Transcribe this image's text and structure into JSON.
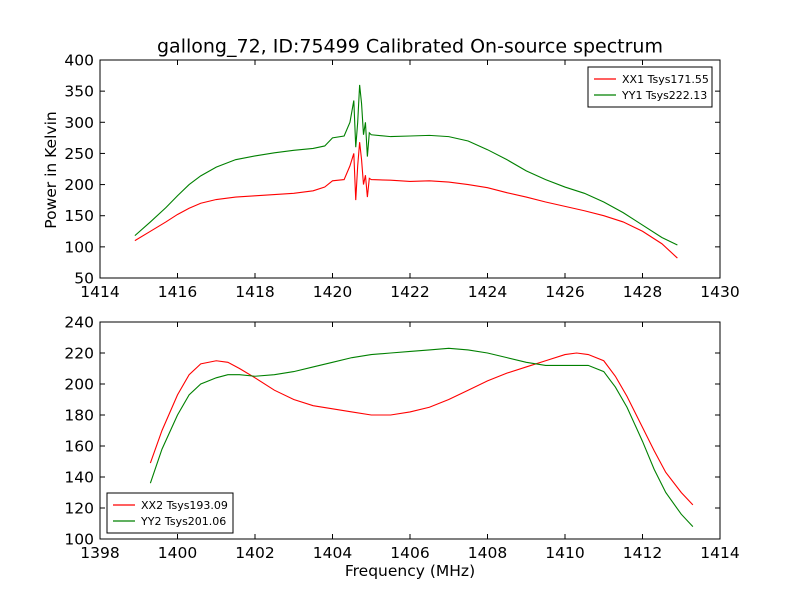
{
  "chart_data": [
    {
      "type": "line",
      "title": "gallong_72, ID:75499 Calibrated On-source spectrum",
      "xlabel": "",
      "ylabel": "Power in Kelvin",
      "xlim": [
        1414,
        1430
      ],
      "ylim": [
        50,
        400
      ],
      "x_ticks": [
        1414,
        1416,
        1418,
        1420,
        1422,
        1424,
        1426,
        1428,
        1430
      ],
      "y_ticks": [
        50,
        100,
        150,
        200,
        250,
        300,
        350,
        400
      ],
      "grid": false,
      "legend_position": "top-right",
      "series": [
        {
          "name": "XX1 Tsys171.55",
          "color": "#ff0000",
          "x": [
            1414.9,
            1415.3,
            1415.7,
            1416.0,
            1416.3,
            1416.6,
            1417.0,
            1417.5,
            1418.0,
            1418.5,
            1419.0,
            1419.5,
            1419.8,
            1420.0,
            1420.3,
            1420.45,
            1420.55,
            1420.6,
            1420.65,
            1420.7,
            1420.75,
            1420.8,
            1420.85,
            1420.9,
            1420.95,
            1421.0,
            1421.5,
            1422.0,
            1422.5,
            1423.0,
            1423.5,
            1424.0,
            1424.5,
            1425.0,
            1425.5,
            1426.0,
            1426.5,
            1427.0,
            1427.5,
            1428.0,
            1428.5,
            1428.9
          ],
          "y": [
            110,
            125,
            140,
            152,
            162,
            170,
            176,
            180,
            182,
            184,
            186,
            190,
            196,
            206,
            208,
            230,
            250,
            175,
            230,
            268,
            240,
            200,
            215,
            180,
            210,
            208,
            207,
            205,
            206,
            204,
            200,
            195,
            187,
            180,
            172,
            165,
            158,
            150,
            140,
            125,
            105,
            82
          ]
        },
        {
          "name": "YY1 Tsys222.13",
          "color": "#008000",
          "x": [
            1414.9,
            1415.3,
            1415.7,
            1416.0,
            1416.3,
            1416.6,
            1417.0,
            1417.5,
            1418.0,
            1418.5,
            1419.0,
            1419.5,
            1419.8,
            1420.0,
            1420.3,
            1420.45,
            1420.55,
            1420.6,
            1420.65,
            1420.7,
            1420.75,
            1420.8,
            1420.85,
            1420.9,
            1420.95,
            1421.0,
            1421.5,
            1422.0,
            1422.5,
            1423.0,
            1423.5,
            1424.0,
            1424.5,
            1425.0,
            1425.5,
            1426.0,
            1426.5,
            1427.0,
            1427.5,
            1428.0,
            1428.5,
            1428.9
          ],
          "y": [
            118,
            140,
            163,
            182,
            200,
            214,
            228,
            240,
            246,
            251,
            255,
            258,
            262,
            275,
            278,
            300,
            335,
            260,
            300,
            360,
            330,
            280,
            300,
            245,
            283,
            280,
            277,
            278,
            279,
            277,
            270,
            256,
            240,
            222,
            208,
            196,
            186,
            172,
            155,
            135,
            115,
            103
          ]
        }
      ]
    },
    {
      "type": "line",
      "title": "",
      "xlabel": "Frequency (MHz)",
      "ylabel": "",
      "xlim": [
        1398,
        1414
      ],
      "ylim": [
        100,
        240
      ],
      "x_ticks": [
        1398,
        1400,
        1402,
        1404,
        1406,
        1408,
        1410,
        1412,
        1414
      ],
      "y_ticks": [
        100,
        120,
        140,
        160,
        180,
        200,
        220,
        240
      ],
      "grid": false,
      "legend_position": "bottom-left",
      "series": [
        {
          "name": "XX2 Tsys193.09",
          "color": "#ff0000",
          "x": [
            1399.3,
            1399.6,
            1400.0,
            1400.3,
            1400.6,
            1401.0,
            1401.3,
            1401.6,
            1402.0,
            1402.5,
            1403.0,
            1403.5,
            1404.0,
            1404.5,
            1405.0,
            1405.5,
            1406.0,
            1406.5,
            1407.0,
            1407.5,
            1408.0,
            1408.5,
            1409.0,
            1409.5,
            1410.0,
            1410.3,
            1410.6,
            1411.0,
            1411.3,
            1411.6,
            1412.0,
            1412.3,
            1412.6,
            1413.0,
            1413.3
          ],
          "y": [
            149,
            170,
            193,
            206,
            213,
            215,
            214,
            210,
            204,
            196,
            190,
            186,
            184,
            182,
            180,
            180,
            182,
            185,
            190,
            196,
            202,
            207,
            211,
            215,
            219,
            220,
            219,
            215,
            205,
            192,
            172,
            157,
            143,
            130,
            122
          ]
        },
        {
          "name": "YY2 Tsys201.06",
          "color": "#008000",
          "x": [
            1399.3,
            1399.6,
            1400.0,
            1400.3,
            1400.6,
            1401.0,
            1401.3,
            1401.6,
            1402.0,
            1402.5,
            1403.0,
            1403.5,
            1404.0,
            1404.5,
            1405.0,
            1405.5,
            1406.0,
            1406.5,
            1407.0,
            1407.5,
            1408.0,
            1408.5,
            1409.0,
            1409.5,
            1410.0,
            1410.3,
            1410.6,
            1411.0,
            1411.3,
            1411.6,
            1412.0,
            1412.3,
            1412.6,
            1413.0,
            1413.3
          ],
          "y": [
            136,
            158,
            180,
            193,
            200,
            204,
            206,
            206,
            205,
            206,
            208,
            211,
            214,
            217,
            219,
            220,
            221,
            222,
            223,
            222,
            220,
            217,
            214,
            212,
            212,
            212,
            212,
            208,
            198,
            185,
            163,
            145,
            130,
            116,
            108
          ]
        }
      ]
    }
  ]
}
